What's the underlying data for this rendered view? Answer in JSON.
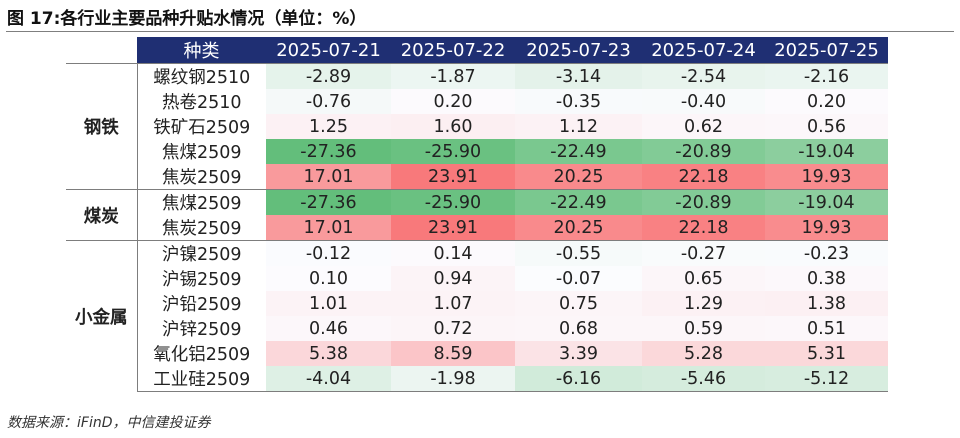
{
  "title": "图 17:各行业主要品种升贴水情况（单位：%）",
  "footer": "数据来源：iFinD，中信建投证券",
  "table": {
    "header_product": "种类",
    "dates": [
      "2025-07-21",
      "2025-07-22",
      "2025-07-23",
      "2025-07-24",
      "2025-07-25"
    ],
    "groups": [
      {
        "name": "钢铁",
        "rows": [
          {
            "product": "螺纹钢2510",
            "values": [
              "-2.89",
              "-1.87",
              "-3.14",
              "-2.54",
              "-2.16"
            ]
          },
          {
            "product": "热卷2510",
            "values": [
              "-0.76",
              "0.20",
              "-0.35",
              "-0.40",
              "0.20"
            ]
          },
          {
            "product": "铁矿石2509",
            "values": [
              "1.25",
              "1.60",
              "1.12",
              "0.62",
              "0.56"
            ]
          },
          {
            "product": "焦煤2509",
            "values": [
              "-27.36",
              "-25.90",
              "-22.49",
              "-20.89",
              "-19.04"
            ]
          },
          {
            "product": "焦炭2509",
            "values": [
              "17.01",
              "23.91",
              "20.25",
              "22.18",
              "19.93"
            ]
          }
        ]
      },
      {
        "name": "煤炭",
        "rows": [
          {
            "product": "焦煤2509",
            "values": [
              "-27.36",
              "-25.90",
              "-22.49",
              "-20.89",
              "-19.04"
            ]
          },
          {
            "product": "焦炭2509",
            "values": [
              "17.01",
              "23.91",
              "20.25",
              "22.18",
              "19.93"
            ]
          }
        ]
      },
      {
        "name": "小金属",
        "rows": [
          {
            "product": "沪镍2509",
            "values": [
              "-0.12",
              "0.14",
              "-0.55",
              "-0.27",
              "-0.23"
            ]
          },
          {
            "product": "沪锡2509",
            "values": [
              "0.10",
              "0.94",
              "-0.07",
              "0.65",
              "0.38"
            ]
          },
          {
            "product": "沪铅2509",
            "values": [
              "1.01",
              "1.07",
              "0.75",
              "1.29",
              "1.38"
            ]
          },
          {
            "product": "沪锌2509",
            "values": [
              "0.46",
              "0.72",
              "0.68",
              "0.59",
              "0.51"
            ]
          },
          {
            "product": "氧化铝2509",
            "values": [
              "5.38",
              "8.59",
              "3.39",
              "5.28",
              "5.31"
            ]
          },
          {
            "product": "工业硅2509",
            "values": [
              "-4.04",
              "-1.98",
              "-6.16",
              "-5.46",
              "-5.12"
            ]
          }
        ]
      }
    ]
  },
  "colors": {
    "header_bg": "#1f2f73",
    "positive": "#f8696b",
    "negative": "#63be7b",
    "neutral": "#fcfcff"
  }
}
